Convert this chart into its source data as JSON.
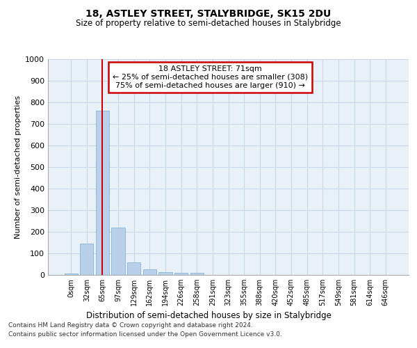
{
  "title": "18, ASTLEY STREET, STALYBRIDGE, SK15 2DU",
  "subtitle": "Size of property relative to semi-detached houses in Stalybridge",
  "xlabel": "Distribution of semi-detached houses by size in Stalybridge",
  "ylabel": "Number of semi-detached properties",
  "footnote1": "Contains HM Land Registry data © Crown copyright and database right 2024.",
  "footnote2": "Contains public sector information licensed under the Open Government Licence v3.0.",
  "annotation_title": "18 ASTLEY STREET: 71sqm",
  "annotation_line1": "← 25% of semi-detached houses are smaller (308)",
  "annotation_line2": "75% of semi-detached houses are larger (910) →",
  "bar_labels": [
    "0sqm",
    "32sqm",
    "65sqm",
    "97sqm",
    "129sqm",
    "162sqm",
    "194sqm",
    "226sqm",
    "258sqm",
    "291sqm",
    "323sqm",
    "355sqm",
    "388sqm",
    "420sqm",
    "452sqm",
    "485sqm",
    "517sqm",
    "549sqm",
    "581sqm",
    "614sqm",
    "646sqm"
  ],
  "bar_values": [
    8,
    145,
    762,
    220,
    57,
    25,
    13,
    10,
    10,
    0,
    0,
    0,
    0,
    0,
    0,
    0,
    0,
    0,
    0,
    0,
    0
  ],
  "bar_color": "#b8d0ea",
  "bar_edge_color": "#7aaace",
  "grid_color": "#c8d8ea",
  "background_color": "#e8f0f8",
  "vline_x": 2,
  "vline_color": "#cc0000",
  "ylim": [
    0,
    1000
  ],
  "yticks": [
    0,
    100,
    200,
    300,
    400,
    500,
    600,
    700,
    800,
    900,
    1000
  ],
  "annotation_box_color": "#cc0000",
  "property_size": 71
}
